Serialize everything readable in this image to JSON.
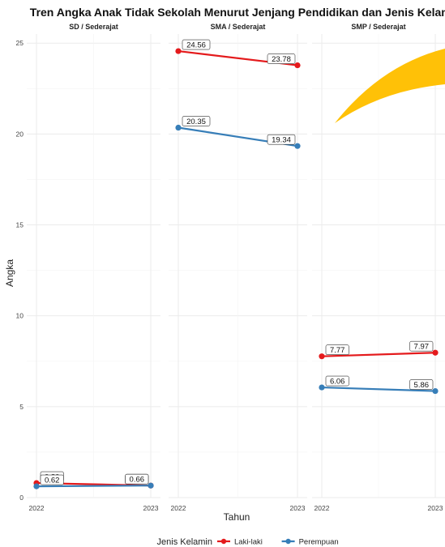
{
  "chart_data": {
    "type": "line",
    "title": "Tren Angka Anak Tidak Sekolah Menurut Jenjang Pendidikan dan Jenis Kelamin",
    "xlabel": "Tahun",
    "ylabel": "Angka",
    "x": [
      "2022",
      "2023"
    ],
    "ylim": [
      0,
      25.5
    ],
    "yticks": [
      "0",
      "5",
      "10",
      "15",
      "20",
      "25"
    ],
    "grid": true,
    "legend": {
      "title": "Jenis Kelamin",
      "placement": "bottom",
      "entries": [
        {
          "name": "Laki-laki",
          "color": "#e41a1c"
        },
        {
          "name": "Perempuan",
          "color": "#377eb8"
        }
      ]
    },
    "panels": [
      {
        "label": "SD / Sederajat",
        "series": [
          {
            "name": "Laki-laki",
            "values": [
              0.8,
              0.66
            ],
            "labels": [
              "0.80",
              "0.66"
            ]
          },
          {
            "name": "Perempuan",
            "values": [
              0.62,
              0.66
            ],
            "labels": [
              "0.62",
              "0.66"
            ]
          }
        ]
      },
      {
        "label": "SMA / Sederajat",
        "series": [
          {
            "name": "Laki-laki",
            "values": [
              24.56,
              23.78
            ],
            "labels": [
              "24.56",
              "23.78"
            ]
          },
          {
            "name": "Perempuan",
            "values": [
              20.35,
              19.34
            ],
            "labels": [
              "20.35",
              "19.34"
            ]
          }
        ]
      },
      {
        "label": "SMP / Sederajat",
        "series": [
          {
            "name": "Laki-laki",
            "values": [
              7.77,
              7.97
            ],
            "labels": [
              "7.77",
              "7.97"
            ]
          },
          {
            "name": "Perempuan",
            "values": [
              6.06,
              5.86
            ],
            "labels": [
              "6.06",
              "5.86"
            ]
          }
        ]
      }
    ],
    "colors": {
      "Laki-laki": "#e41a1c",
      "Perempuan": "#377eb8",
      "decoration": "#ffc107"
    }
  }
}
